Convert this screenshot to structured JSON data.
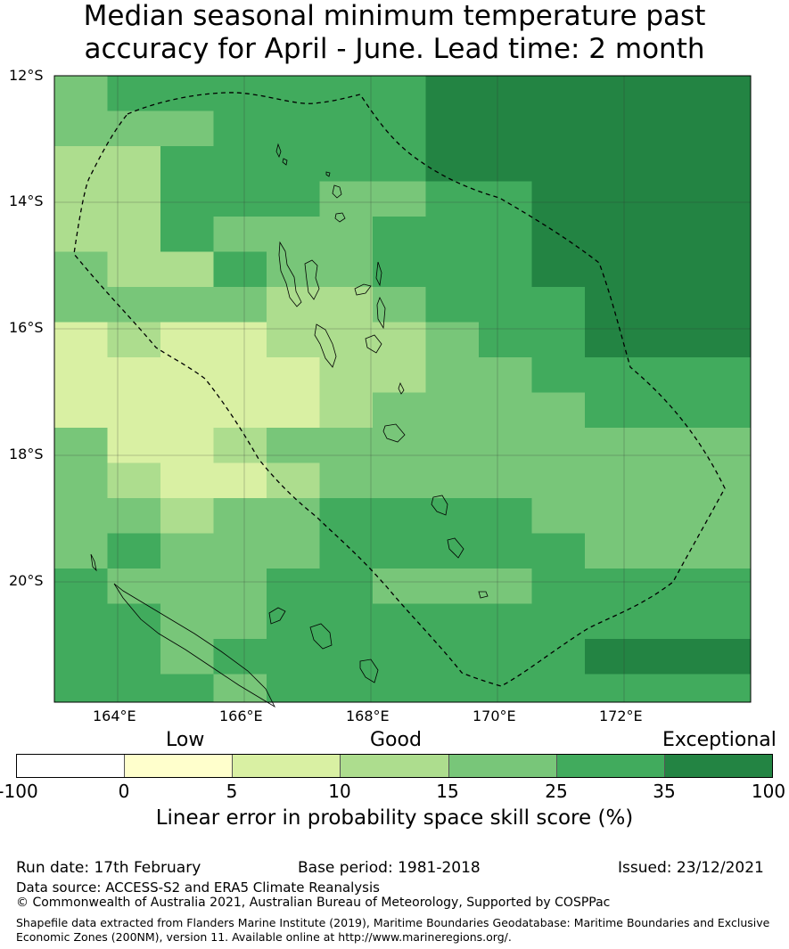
{
  "title": [
    "Median seasonal minimum temperature past",
    "accuracy for April - June. Lead time: 2 month"
  ],
  "map": {
    "lat_labels": [
      "12°S",
      "14°S",
      "16°S",
      "18°S",
      "20°S"
    ],
    "lon_labels": [
      "164°E",
      "166°E",
      "168°E",
      "170°E",
      "172°E"
    ],
    "lon_range": [
      163,
      174
    ],
    "lat_range": [
      -12,
      -21.9
    ],
    "grid_on": true,
    "boundary_style": "dashed",
    "colors": [
      "#ffffff",
      "#ffffcc",
      "#d9f0a3",
      "#addd8e",
      "#78c679",
      "#41ab5d",
      "#238443"
    ]
  },
  "legend": {
    "qualitative": [
      "Low",
      "Good",
      "Exceptional"
    ],
    "ticks": [
      "-100",
      "0",
      "5",
      "10",
      "15",
      "25",
      "35",
      "100"
    ],
    "label": "Linear error in probability space skill score (%)"
  },
  "footer": {
    "run_date": "Run date: 17th February",
    "base_period": "Base period: 1981-2018",
    "issued": "Issued: 23/12/2021",
    "data_source": "Data source: ACCESS-S2 and ERA5 Climate Reanalysis",
    "copyright": "© Commonwealth of Australia 2021, Australian Bureau of Meteorology, Supported by COSPPac",
    "shapefile_1": "Shapefile data extracted from Flanders Marine Institute (2019), Maritime Boundaries Geodatabase: Maritime Boundaries and Exclusive",
    "shapefile_2": "Economic Zones (200NM), version 11. Available online at http://www.marineregions.org/."
  }
}
